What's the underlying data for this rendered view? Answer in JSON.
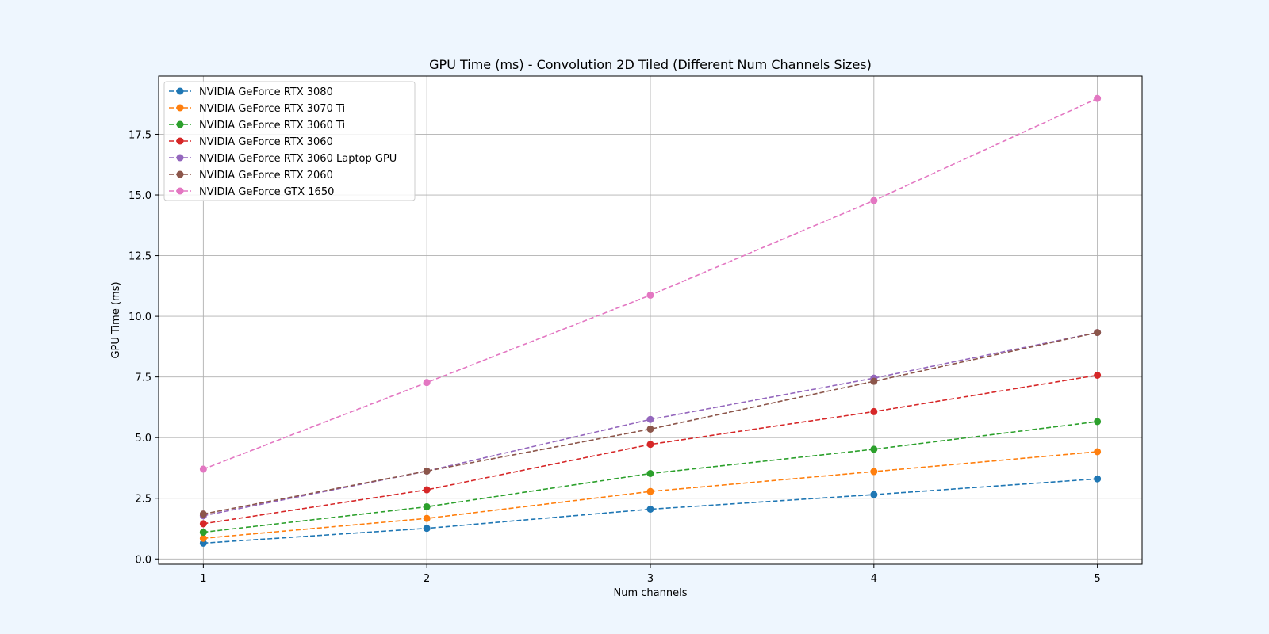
{
  "chart_data": {
    "type": "line",
    "title": "GPU Time (ms) - Convolution 2D Tiled (Different Num Channels Sizes)",
    "xlabel": "Num channels",
    "ylabel": "GPU Time (ms)",
    "x": [
      1,
      2,
      3,
      4,
      5
    ],
    "xticks": [
      "1",
      "2",
      "3",
      "4",
      "5"
    ],
    "yticks": [
      "0.0",
      "2.5",
      "5.0",
      "7.5",
      "10.0",
      "12.5",
      "15.0",
      "17.5"
    ],
    "xlim": [
      0.8,
      5.2
    ],
    "ylim": [
      -0.22,
      19.9
    ],
    "grid": true,
    "legend_position": "top-left",
    "line_style": "dashed",
    "marker": "circle",
    "series": [
      {
        "name": "NVIDIA GeForce RTX 3080",
        "color": "#1f77b4",
        "values": [
          0.65,
          1.26,
          2.05,
          2.65,
          3.3
        ]
      },
      {
        "name": "NVIDIA GeForce RTX 3070 Ti",
        "color": "#ff7f0e",
        "values": [
          0.85,
          1.67,
          2.78,
          3.6,
          4.42
        ]
      },
      {
        "name": "NVIDIA GeForce RTX 3060 Ti",
        "color": "#2ca02c",
        "values": [
          1.1,
          2.15,
          3.52,
          4.52,
          5.66
        ]
      },
      {
        "name": "NVIDIA GeForce RTX 3060",
        "color": "#d62728",
        "values": [
          1.45,
          2.85,
          4.72,
          6.07,
          7.57
        ]
      },
      {
        "name": "NVIDIA GeForce RTX 3060 Laptop GPU",
        "color": "#9467bd",
        "values": [
          1.78,
          3.62,
          5.75,
          7.45,
          9.33
        ]
      },
      {
        "name": "NVIDIA GeForce RTX 2060",
        "color": "#8c564b",
        "values": [
          1.85,
          3.62,
          5.35,
          7.32,
          9.33
        ]
      },
      {
        "name": "NVIDIA GeForce GTX 1650",
        "color": "#e377c2",
        "values": [
          3.7,
          7.27,
          10.87,
          14.77,
          18.98
        ]
      }
    ]
  }
}
